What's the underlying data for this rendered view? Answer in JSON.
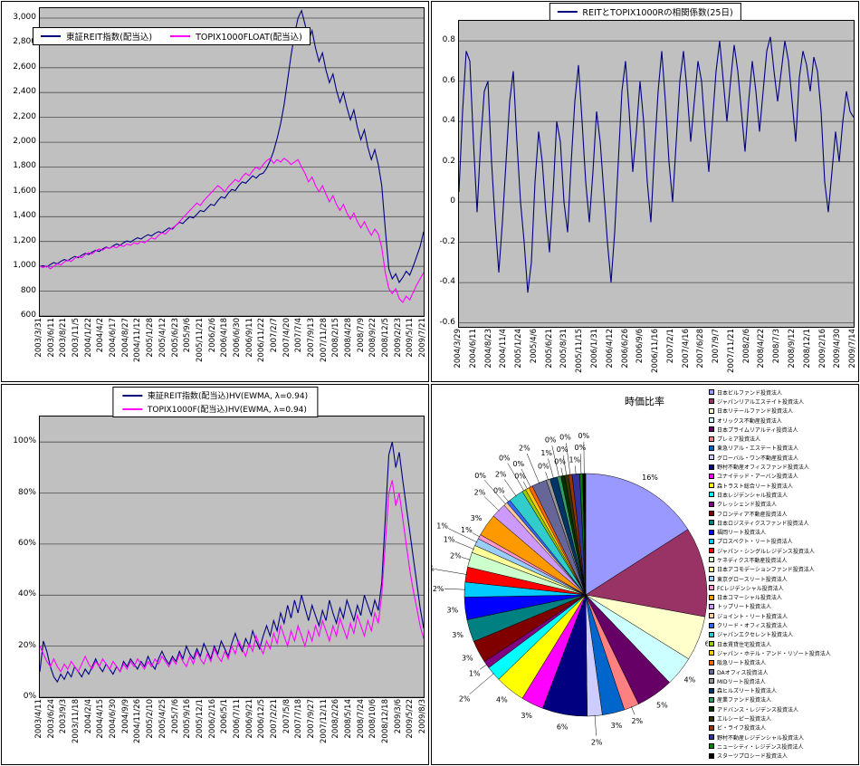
{
  "page": {
    "background": "#FFFFFF",
    "plot_background": "#C0C0C0",
    "gridline_color": "#4D4D4D"
  },
  "chart_data": [
    {
      "id": "reit_index",
      "type": "line",
      "title": "",
      "legend_position": "top-left-inside",
      "ylim": [
        600,
        3080
      ],
      "yticks": [
        {
          "v": 3000,
          "label": "3,000"
        },
        {
          "v": 2800,
          "label": "2,800"
        },
        {
          "v": 2600,
          "label": "2,600"
        },
        {
          "v": 2400,
          "label": "2,400"
        },
        {
          "v": 2200,
          "label": "2,200"
        },
        {
          "v": 2000,
          "label": "2,000"
        },
        {
          "v": 1800,
          "label": "1,800"
        },
        {
          "v": 1600,
          "label": "1,600"
        },
        {
          "v": 1400,
          "label": "1,400"
        },
        {
          "v": 1200,
          "label": "1,200"
        },
        {
          "v": 1000,
          "label": "1,000"
        },
        {
          "v": 800,
          "label": "800"
        },
        {
          "v": 600,
          "label": "600"
        }
      ],
      "x_labels": [
        "2003/3/31",
        "2003/6/11",
        "2003/8/21",
        "2003/11/5",
        "2004/1/22",
        "2004/4/2",
        "2004/6/17",
        "2004/8/27",
        "2004/11/12",
        "2005/1/28",
        "2005/4/12",
        "2005/6/23",
        "2005/9/6",
        "2005/11/21",
        "2006/2/6",
        "2006/4/18",
        "2006/6/30",
        "2006/9/11",
        "2006/11/22",
        "2007/2/7",
        "2007/4/20",
        "2007/7/4",
        "2007/9/13",
        "2007/11/28",
        "2008/2/15",
        "2008/4/28",
        "2008/7/9",
        "2008/9/22",
        "2008/12/5",
        "2009/2/23",
        "2009/5/11",
        "2009/7/21"
      ],
      "series": [
        {
          "name": "東証REIT指数(配当込)",
          "color": "#000080",
          "values": [
            1000,
            1005,
            995,
            1015,
            1030,
            1020,
            1040,
            1055,
            1045,
            1065,
            1080,
            1070,
            1090,
            1105,
            1095,
            1115,
            1130,
            1120,
            1140,
            1155,
            1145,
            1165,
            1180,
            1170,
            1190,
            1205,
            1195,
            1215,
            1230,
            1220,
            1240,
            1255,
            1245,
            1265,
            1280,
            1270,
            1290,
            1310,
            1300,
            1330,
            1355,
            1345,
            1375,
            1400,
            1390,
            1420,
            1450,
            1440,
            1470,
            1500,
            1490,
            1530,
            1560,
            1550,
            1590,
            1620,
            1610,
            1650,
            1680,
            1670,
            1700,
            1730,
            1710,
            1740,
            1750,
            1790,
            1850,
            1930,
            2030,
            2150,
            2300,
            2500,
            2700,
            2870,
            3000,
            3060,
            2950,
            2820,
            2900,
            2760,
            2650,
            2720,
            2580,
            2480,
            2550,
            2420,
            2320,
            2400,
            2280,
            2180,
            2260,
            2120,
            2020,
            2100,
            1960,
            1860,
            1940,
            1820,
            1650,
            1300,
            980,
            900,
            940,
            870,
            910,
            960,
            930,
            1000,
            1080,
            1160,
            1280
          ]
        },
        {
          "name": "TOPIX1000FLOAT(配当込)",
          "color": "#FF00FF",
          "values": [
            1000,
            990,
            1005,
            980,
            1000,
            1020,
            1010,
            1035,
            1050,
            1040,
            1065,
            1080,
            1070,
            1095,
            1110,
            1100,
            1125,
            1140,
            1130,
            1150,
            1145,
            1160,
            1150,
            1170,
            1160,
            1180,
            1170,
            1190,
            1180,
            1200,
            1190,
            1210,
            1230,
            1220,
            1250,
            1270,
            1260,
            1290,
            1310,
            1330,
            1360,
            1390,
            1420,
            1450,
            1480,
            1510,
            1490,
            1530,
            1560,
            1590,
            1620,
            1650,
            1630,
            1600,
            1640,
            1670,
            1700,
            1680,
            1720,
            1750,
            1730,
            1770,
            1800,
            1780,
            1820,
            1850,
            1870,
            1830,
            1860,
            1840,
            1870,
            1850,
            1820,
            1840,
            1860,
            1800,
            1750,
            1680,
            1720,
            1650,
            1600,
            1650,
            1580,
            1520,
            1570,
            1500,
            1450,
            1500,
            1430,
            1380,
            1430,
            1360,
            1310,
            1360,
            1300,
            1250,
            1300,
            1260,
            1150,
            950,
            820,
            780,
            820,
            740,
            710,
            760,
            730,
            790,
            850,
            900,
            950
          ]
        }
      ]
    },
    {
      "id": "correlation",
      "type": "line",
      "title": "REITとTOPIX1000Rの相関係数(25日)",
      "legend_position": "top-center",
      "ylim": [
        -0.62,
        0.9
      ],
      "yticks": [
        {
          "v": 0.8,
          "label": "0.8"
        },
        {
          "v": 0.6,
          "label": "0.6"
        },
        {
          "v": 0.4,
          "label": "0.4"
        },
        {
          "v": 0.2,
          "label": "0.2"
        },
        {
          "v": 0,
          "label": "0"
        },
        {
          "v": -0.2,
          "label": "-0.2"
        },
        {
          "v": -0.4,
          "label": "-0.4"
        },
        {
          "v": -0.6,
          "label": "-0.6"
        }
      ],
      "x_labels": [
        "2004/3/29",
        "2004/6/11",
        "2004/8/23",
        "2004/11/4",
        "2005/1/24",
        "2005/4/6",
        "2005/6/21",
        "2005/8/31",
        "2005/11/15",
        "2006/1/31",
        "2006/4/12",
        "2006/6/26",
        "2006/9/6",
        "2006/11/16",
        "2007/2/1",
        "2007/4/16",
        "2007/6/28",
        "2007/9/7",
        "2007/11/21",
        "2008/2/6",
        "2008/4/22",
        "2008/7/3",
        "2008/9/12",
        "2008/12/1",
        "2009/2/16",
        "2009/4/30",
        "2009/7/14"
      ],
      "series": [
        {
          "name": "REITとTOPIX1000Rの相関係数(25日)",
          "color": "#000080",
          "values": [
            0.05,
            0.45,
            0.75,
            0.7,
            0.3,
            -0.05,
            0.3,
            0.55,
            0.6,
            0.2,
            -0.1,
            -0.35,
            -0.1,
            0.2,
            0.5,
            0.65,
            0.3,
            0.0,
            -0.2,
            -0.45,
            -0.3,
            0.1,
            0.35,
            0.2,
            -0.05,
            -0.25,
            0.05,
            0.4,
            0.3,
            0.0,
            -0.15,
            0.2,
            0.5,
            0.68,
            0.4,
            0.1,
            -0.1,
            0.15,
            0.45,
            0.3,
            0.05,
            -0.2,
            -0.4,
            -0.15,
            0.2,
            0.55,
            0.7,
            0.45,
            0.15,
            0.35,
            0.6,
            0.4,
            0.1,
            -0.1,
            0.25,
            0.55,
            0.75,
            0.5,
            0.2,
            0.0,
            0.3,
            0.6,
            0.75,
            0.55,
            0.3,
            0.5,
            0.7,
            0.6,
            0.35,
            0.15,
            0.4,
            0.65,
            0.8,
            0.6,
            0.4,
            0.6,
            0.78,
            0.65,
            0.45,
            0.25,
            0.5,
            0.7,
            0.55,
            0.35,
            0.55,
            0.75,
            0.82,
            0.65,
            0.5,
            0.65,
            0.8,
            0.7,
            0.5,
            0.3,
            0.62,
            0.75,
            0.68,
            0.55,
            0.72,
            0.65,
            0.45,
            0.1,
            -0.05,
            0.15,
            0.35,
            0.2,
            0.4,
            0.55,
            0.45,
            0.42
          ]
        }
      ]
    },
    {
      "id": "hv",
      "type": "line",
      "title": "",
      "legend_position": "top-center",
      "ylim": [
        0,
        1.1
      ],
      "yticks": [
        {
          "v": 1,
          "label": "100%"
        },
        {
          "v": 0.8,
          "label": "80%"
        },
        {
          "v": 0.6,
          "label": "60%"
        },
        {
          "v": 0.4,
          "label": "40%"
        },
        {
          "v": 0.2,
          "label": "20%"
        },
        {
          "v": 0,
          "label": "0%"
        }
      ],
      "x_labels": [
        "2003/4/11",
        "2003/6/24",
        "2003/9/3",
        "2003/11/18",
        "2004/2/4",
        "2004/4/15",
        "2004/6/30",
        "2004/9/9",
        "2004/11/26",
        "2005/2/10",
        "2005/4/25",
        "2005/7/6",
        "2005/9/16",
        "2005/12/1",
        "2006/2/16",
        "2006/5/1",
        "2006/7/11",
        "2006/9/21",
        "2006/12/5",
        "2007/2/21",
        "2007/5/8",
        "2007/7/18",
        "2007/9/27",
        "2007/12/11",
        "2008/2/26",
        "2008/5/14",
        "2008/7/24",
        "2008/10/6",
        "2008/12/18",
        "2009/3/6",
        "2009/5/22",
        "2009/8/3"
      ],
      "series": [
        {
          "name": "東証REIT指数(配当込)HV(EWMA, λ=0.94)",
          "color": "#000080",
          "values": [
            0.1,
            0.22,
            0.18,
            0.12,
            0.08,
            0.06,
            0.09,
            0.07,
            0.1,
            0.08,
            0.12,
            0.1,
            0.08,
            0.11,
            0.09,
            0.12,
            0.15,
            0.12,
            0.1,
            0.13,
            0.11,
            0.09,
            0.12,
            0.1,
            0.14,
            0.12,
            0.15,
            0.13,
            0.11,
            0.14,
            0.12,
            0.16,
            0.13,
            0.11,
            0.15,
            0.18,
            0.15,
            0.13,
            0.16,
            0.14,
            0.18,
            0.15,
            0.2,
            0.17,
            0.15,
            0.19,
            0.16,
            0.21,
            0.18,
            0.15,
            0.2,
            0.17,
            0.22,
            0.19,
            0.16,
            0.21,
            0.25,
            0.21,
            0.18,
            0.23,
            0.2,
            0.26,
            0.22,
            0.19,
            0.24,
            0.28,
            0.24,
            0.3,
            0.26,
            0.33,
            0.29,
            0.36,
            0.31,
            0.38,
            0.33,
            0.4,
            0.35,
            0.3,
            0.36,
            0.32,
            0.28,
            0.34,
            0.3,
            0.38,
            0.33,
            0.29,
            0.35,
            0.31,
            0.38,
            0.34,
            0.3,
            0.36,
            0.32,
            0.4,
            0.36,
            0.32,
            0.38,
            0.34,
            0.45,
            0.7,
            0.95,
            1.0,
            0.9,
            0.96,
            0.85,
            0.75,
            0.65,
            0.55,
            0.45,
            0.35,
            0.27
          ]
        },
        {
          "name": "TOPIX1000F(配当込)HV(EWMA, λ=0.94)",
          "color": "#FF00FF",
          "values": [
            0.2,
            0.17,
            0.14,
            0.12,
            0.15,
            0.12,
            0.1,
            0.13,
            0.11,
            0.14,
            0.12,
            0.1,
            0.13,
            0.16,
            0.13,
            0.11,
            0.14,
            0.12,
            0.15,
            0.13,
            0.11,
            0.14,
            0.12,
            0.1,
            0.13,
            0.11,
            0.14,
            0.12,
            0.15,
            0.13,
            0.11,
            0.14,
            0.12,
            0.15,
            0.13,
            0.16,
            0.14,
            0.12,
            0.15,
            0.13,
            0.17,
            0.14,
            0.12,
            0.16,
            0.13,
            0.18,
            0.15,
            0.13,
            0.17,
            0.14,
            0.19,
            0.16,
            0.14,
            0.18,
            0.15,
            0.2,
            0.17,
            0.22,
            0.19,
            0.16,
            0.21,
            0.18,
            0.24,
            0.2,
            0.17,
            0.22,
            0.19,
            0.25,
            0.21,
            0.28,
            0.24,
            0.2,
            0.26,
            0.22,
            0.28,
            0.24,
            0.2,
            0.26,
            0.22,
            0.28,
            0.24,
            0.3,
            0.26,
            0.22,
            0.28,
            0.24,
            0.31,
            0.27,
            0.23,
            0.29,
            0.25,
            0.32,
            0.28,
            0.24,
            0.3,
            0.26,
            0.33,
            0.29,
            0.4,
            0.6,
            0.8,
            0.85,
            0.75,
            0.8,
            0.7,
            0.6,
            0.5,
            0.42,
            0.35,
            0.28,
            0.23
          ]
        }
      ]
    },
    {
      "id": "weights",
      "type": "pie",
      "title": "時価比率",
      "legend_position": "right",
      "slices": [
        {
          "name": "日本ビルファンド投資法人",
          "value": 16,
          "color": "#9999FF"
        },
        {
          "name": "ジャパンリアルエステイト投資法人",
          "value": 12,
          "color": "#993366"
        },
        {
          "name": "日本リテールファンド投資法人",
          "value": 6,
          "color": "#FFFFCC"
        },
        {
          "name": "オリックス不動産投資法人",
          "value": 4,
          "color": "#CCFFFF"
        },
        {
          "name": "日本プライムリアルティ投資法人",
          "value": 5,
          "color": "#660066"
        },
        {
          "name": "プレミア投資法人",
          "value": 2,
          "color": "#FF8080"
        },
        {
          "name": "東急リアル・エステート投資法人",
          "value": 3,
          "color": "#0066CC"
        },
        {
          "name": "グローバル・ワン不動産投資法人",
          "value": 2,
          "color": "#CCCCFF"
        },
        {
          "name": "野村不動産オフィスファンド投資法人",
          "value": 6,
          "color": "#000080"
        },
        {
          "name": "ユナイテッド・アーバン投資法人",
          "value": 3,
          "color": "#FF00FF"
        },
        {
          "name": "森トラスト総合リート投資法人",
          "value": 4,
          "color": "#FFFF00"
        },
        {
          "name": "日本レジデンシャル投資法人",
          "value": 2,
          "color": "#00FFFF"
        },
        {
          "name": "クレッシェンド投資法人",
          "value": 1,
          "color": "#800080"
        },
        {
          "name": "フロンティア不動産投資法人",
          "value": 3,
          "color": "#800000"
        },
        {
          "name": "日本ロジスティクスファンド投資法人",
          "value": 3,
          "color": "#008080"
        },
        {
          "name": "福岡リート投資法人",
          "value": 3,
          "color": "#0000FF"
        },
        {
          "name": "プロスペクト・リート投資法人",
          "value": 2,
          "color": "#00CCFF"
        },
        {
          "name": "ジャパン・シングルレジデンス投資法人",
          "value": 2,
          "color": "#FF0000"
        },
        {
          "name": "ケネディクス不動産投資法人",
          "value": 2,
          "color": "#CCFFCC"
        },
        {
          "name": "日本アコモデーションファンド投資法人",
          "value": 1,
          "color": "#FFFF99"
        },
        {
          "name": "東京グロースリート投資法人",
          "value": 1,
          "color": "#99CCFF"
        },
        {
          "name": "FCレジデンシャル投資法人",
          "value": 0.6,
          "color": "#FF99CC"
        },
        {
          "name": "日本コマーシャル投資法人",
          "value": 3,
          "color": "#FF9900"
        },
        {
          "name": "トップリート投資法人",
          "value": 2,
          "color": "#CC99FF"
        },
        {
          "name": "ジョイント・リート投資法人",
          "value": 0.5,
          "color": "#FFCC99"
        },
        {
          "name": "クリード・オフィス投資法人",
          "value": 0.5,
          "color": "#3366FF"
        },
        {
          "name": "ジャパンエクセレント投資法人",
          "value": 2,
          "color": "#33CCCC"
        },
        {
          "name": "日本賃貸住宅投資法人",
          "value": 0.5,
          "color": "#99CC00"
        },
        {
          "name": "ジャパン・ホテル・アンド・リゾート投資法人",
          "value": 0.5,
          "color": "#FFCC00"
        },
        {
          "name": "阪急リート投資法人",
          "value": 0.5,
          "color": "#FF6600"
        },
        {
          "name": "DAオフィス投資法人",
          "value": 2,
          "color": "#666699"
        },
        {
          "name": "MIDリート投資法人",
          "value": 0.5,
          "color": "#969696"
        },
        {
          "name": "森ヒルズリート投資法人",
          "value": 1,
          "color": "#003366"
        },
        {
          "name": "産業ファンド投資法人",
          "value": 0.5,
          "color": "#339966"
        },
        {
          "name": "アドバンス・レジデンス投資法人",
          "value": 0.5,
          "color": "#003300"
        },
        {
          "name": "エルシーピー投資法人",
          "value": 0.5,
          "color": "#333300"
        },
        {
          "name": "ビ・ライフ投資法人",
          "value": 0.5,
          "color": "#993300"
        },
        {
          "name": "野村不動産レジデンシャル投資法人",
          "value": 1,
          "color": "#333399"
        },
        {
          "name": "ニューシティ・レジデンス投資法人",
          "value": 0.4,
          "color": "#008000"
        },
        {
          "name": "スターツプロシード投資法人",
          "value": 0.4,
          "color": "#000000"
        }
      ]
    }
  ]
}
